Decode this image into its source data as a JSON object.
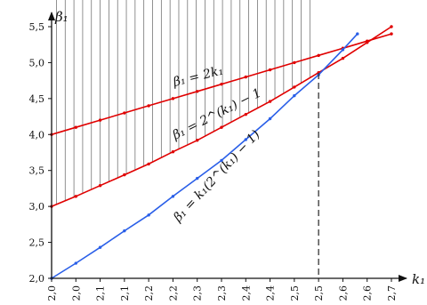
{
  "chart_data": {
    "type": "line",
    "xlabel": "k₁",
    "ylabel": "β₁",
    "xlim": [
      2.0,
      2.7
    ],
    "ylim": [
      2.0,
      5.5
    ],
    "x_ticks": [
      "2,0",
      "2,0",
      "2,1",
      "2,1",
      "2,2",
      "2,2",
      "2,3",
      "2,3",
      "2,4",
      "2,4",
      "2,5",
      "2,5",
      "2,6",
      "2,6",
      "2,7",
      "2,7"
    ],
    "y_ticks": [
      "2,0",
      "2,5",
      "3,0",
      "3,5",
      "4,0",
      "4,5",
      "5,0",
      "5,5"
    ],
    "series": [
      {
        "name": "β₁ = 2k₁",
        "color": "#e00000",
        "x": [
          2.0,
          2.05,
          2.1,
          2.15,
          2.2,
          2.25,
          2.3,
          2.35,
          2.4,
          2.45,
          2.5,
          2.55,
          2.6,
          2.65,
          2.7
        ],
        "y": [
          4.0,
          4.1,
          4.2,
          4.3,
          4.4,
          4.5,
          4.6,
          4.7,
          4.8,
          4.9,
          5.0,
          5.1,
          5.2,
          5.3,
          5.4
        ]
      },
      {
        "name": "β₁ = 2^k₁ − 1",
        "color": "#e00000",
        "x": [
          2.0,
          2.05,
          2.1,
          2.15,
          2.2,
          2.25,
          2.3,
          2.35,
          2.4,
          2.45,
          2.5,
          2.55,
          2.6,
          2.65,
          2.7
        ],
        "y": [
          3.0,
          3.14,
          3.29,
          3.44,
          3.59,
          3.76,
          3.92,
          4.1,
          4.28,
          4.46,
          4.66,
          4.86,
          5.06,
          5.28,
          5.5
        ]
      },
      {
        "name": "β₁ = k₁(2^k₁ − 1)",
        "color": "#2a5fe8",
        "x": [
          2.0,
          2.05,
          2.1,
          2.15,
          2.2,
          2.25,
          2.3,
          2.35,
          2.4,
          2.45,
          2.5,
          2.55,
          2.6,
          2.63
        ],
        "y": [
          2.0,
          2.21,
          2.43,
          2.66,
          2.88,
          3.14,
          3.39,
          3.64,
          3.93,
          4.22,
          4.54,
          4.83,
          5.18,
          5.4
        ]
      }
    ],
    "labels": {
      "line1": "β₁ = 2k₁",
      "line2": "β₁ = 2^(k₁) − 1",
      "line3": "β₁ = k₁(2^(k₁) − 1)"
    },
    "marker_x": 2.55,
    "shaded_region": "vertical hatching between β₁ = 2^k₁ − 1 and β₁ = k₁(2^k₁ − 1) for k₁ from 2.0 to 2.55",
    "grid": false,
    "legend": "none"
  }
}
